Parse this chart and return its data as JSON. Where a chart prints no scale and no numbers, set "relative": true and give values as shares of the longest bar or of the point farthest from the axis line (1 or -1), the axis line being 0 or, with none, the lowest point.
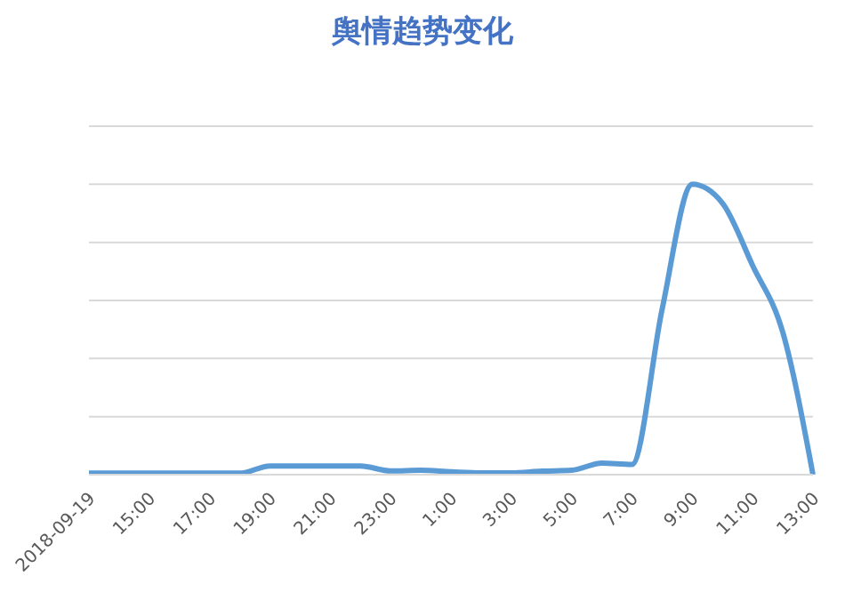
{
  "chart_data": {
    "type": "line",
    "title": "舆情趋势变化",
    "relative": true,
    "grid": "y",
    "marker": "none",
    "line_style": "solid",
    "legend": false,
    "categories": [
      "2018-09-19",
      null,
      "15:00",
      null,
      "17:00",
      null,
      "19:00",
      null,
      "21:00",
      null,
      "23:00",
      null,
      "1:00",
      null,
      "3:00",
      null,
      "5:00",
      null,
      "7:00",
      null,
      "9:00",
      null,
      "11:00",
      null,
      "13:00"
    ],
    "series": [
      {
        "color": "#5b9bd5",
        "values": [
          0.005,
          0.005,
          0.005,
          0.005,
          0.005,
          0.005,
          0.03,
          0.03,
          0.03,
          0.03,
          0.013,
          0.015,
          0.01,
          0.006,
          0.006,
          0.012,
          0.015,
          0.04,
          0.035,
          0.57,
          1.0,
          0.935,
          0.72,
          0.49,
          0
        ]
      }
    ]
  }
}
